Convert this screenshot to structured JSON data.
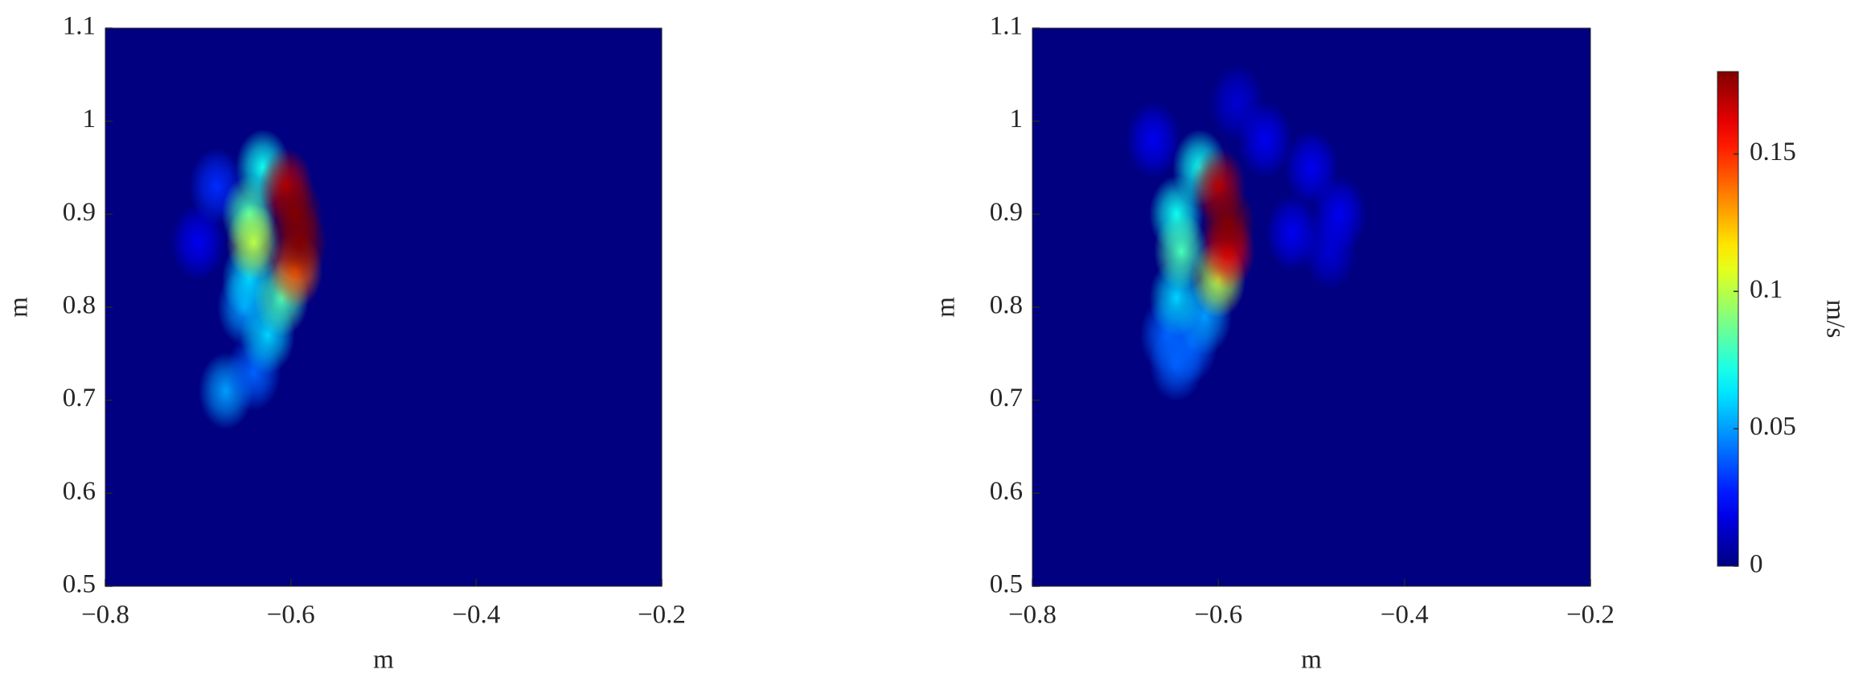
{
  "chart_data": [
    {
      "type": "heatmap",
      "xlabel": "m",
      "ylabel": "m",
      "x": [
        -0.7,
        -0.68,
        -0.67,
        -0.64,
        -0.65,
        -0.645,
        -0.63,
        -0.645,
        -0.625,
        -0.61,
        -0.64,
        -0.595,
        -0.605,
        -0.595,
        -0.59
      ],
      "y": [
        0.87,
        0.93,
        0.71,
        0.73,
        0.8,
        0.83,
        0.95,
        0.9,
        0.77,
        0.81,
        0.87,
        0.84,
        0.93,
        0.9,
        0.87
      ],
      "values": [
        0.02,
        0.03,
        0.05,
        0.04,
        0.05,
        0.06,
        0.07,
        0.08,
        0.06,
        0.08,
        0.1,
        0.14,
        0.17,
        0.18,
        0.18
      ],
      "xlim": [
        -0.8,
        -0.2
      ],
      "ylim": [
        0.5,
        1.1
      ],
      "xticks": [
        {
          "value": -0.8,
          "label": "−0.8"
        },
        {
          "value": -0.6,
          "label": "−0.6"
        },
        {
          "value": -0.4,
          "label": "−0.4"
        },
        {
          "value": -0.2,
          "label": "−0.2"
        }
      ],
      "yticks": [
        0.5,
        0.6,
        0.7,
        0.8,
        0.9,
        1,
        1.1
      ]
    },
    {
      "type": "heatmap",
      "xlabel": "m",
      "ylabel": "m",
      "x": [
        -0.48,
        -0.58,
        -0.55,
        -0.5,
        -0.47,
        -0.52,
        -0.67,
        -0.645,
        -0.655,
        -0.63,
        -0.615,
        -0.62,
        -0.645,
        -0.645,
        -0.64,
        -0.6,
        -0.6,
        -0.59,
        -0.59
      ],
      "y": [
        0.86,
        1.02,
        0.98,
        0.95,
        0.9,
        0.88,
        0.98,
        0.74,
        0.77,
        0.76,
        0.79,
        0.95,
        0.81,
        0.9,
        0.86,
        0.83,
        0.93,
        0.86,
        0.89
      ],
      "values": [
        0.015,
        0.015,
        0.02,
        0.02,
        0.02,
        0.02,
        0.02,
        0.04,
        0.04,
        0.04,
        0.05,
        0.07,
        0.06,
        0.07,
        0.08,
        0.1,
        0.17,
        0.16,
        0.18
      ],
      "xlim": [
        -0.8,
        -0.2
      ],
      "ylim": [
        0.5,
        1.1
      ],
      "xticks": [
        {
          "value": -0.8,
          "label": "−0.8"
        },
        {
          "value": -0.6,
          "label": "−0.6"
        },
        {
          "value": -0.4,
          "label": "−0.4"
        },
        {
          "value": -0.2,
          "label": "−0.2"
        }
      ],
      "yticks": [
        0.5,
        0.6,
        0.7,
        0.8,
        0.9,
        1,
        1.1
      ]
    }
  ],
  "colorbar": {
    "label": "m/s",
    "colormap": "jet",
    "clim": [
      0,
      0.18
    ],
    "ticks": [
      0,
      0.05,
      0.1,
      0.15
    ]
  }
}
